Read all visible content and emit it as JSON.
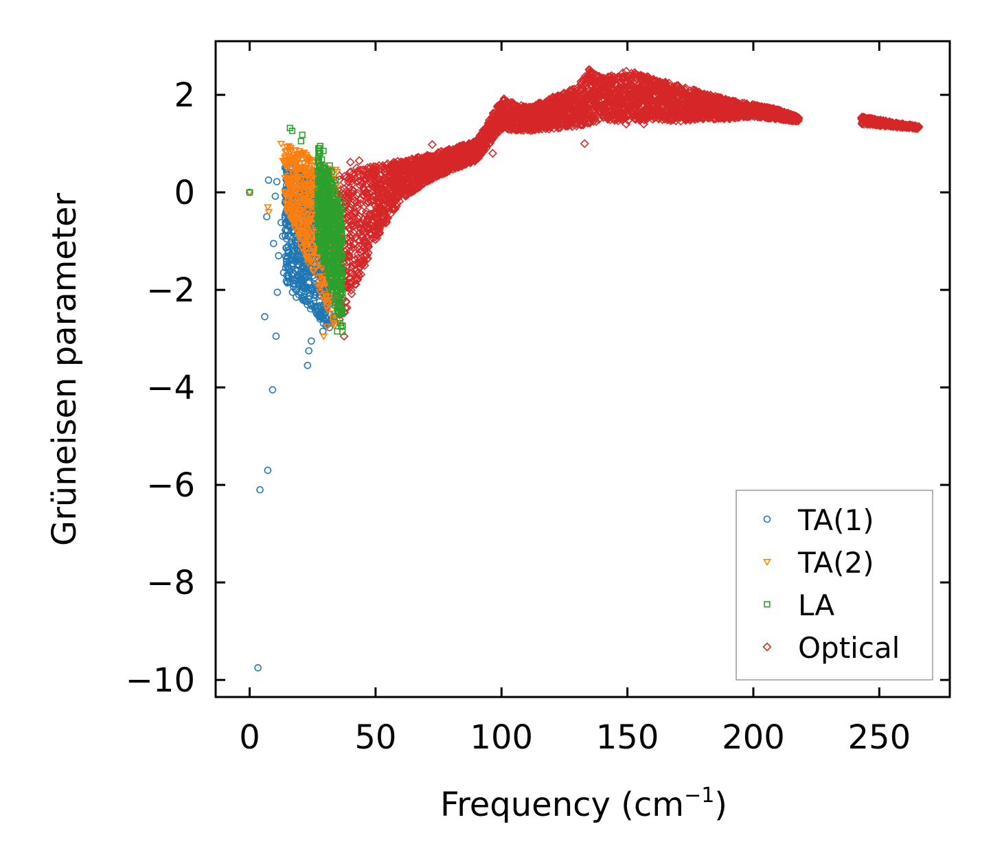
{
  "chart_data": {
    "type": "scatter",
    "title": "",
    "xlabel": "Frequency (cm",
    "xlabel_sup": "−1",
    "xlabel_close": ")",
    "ylabel": "Grüneisen parameter",
    "xlim": [
      -13.5,
      278
    ],
    "ylim": [
      -10.35,
      3.1
    ],
    "xticks": [
      0,
      50,
      100,
      150,
      200,
      250
    ],
    "xtick_labels": [
      "0",
      "50",
      "100",
      "150",
      "200",
      "250"
    ],
    "yticks": [
      -10,
      -8,
      -6,
      -4,
      -2,
      0,
      2
    ],
    "ytick_labels": [
      "−10",
      "−8",
      "−6",
      "−4",
      "−2",
      "0",
      "2"
    ],
    "legend_position": "lower-right",
    "series": [
      {
        "name": "TA(1)",
        "marker": "circle",
        "color": "#1f77b4",
        "points": [
          [
            0,
            0
          ],
          [
            3.3,
            -9.75
          ],
          [
            4.1,
            -6.1
          ],
          [
            7.2,
            -5.7
          ],
          [
            9.1,
            -4.05
          ],
          [
            10.5,
            -2.95
          ],
          [
            6,
            -2.55
          ],
          [
            11,
            -2.05
          ],
          [
            17,
            -2.05
          ],
          [
            18.5,
            -2.15
          ],
          [
            23,
            -3.55
          ],
          [
            23.5,
            -3.25
          ],
          [
            24.5,
            -3.05
          ],
          [
            6.8,
            -0.5
          ],
          [
            9.5,
            -1.05
          ],
          [
            11.5,
            -1.3
          ],
          [
            13.5,
            -1.65
          ],
          [
            7.5,
            0.25
          ],
          [
            10.8,
            0.22
          ],
          [
            10.2,
            -0.08
          ],
          [
            12.5,
            -0.62
          ],
          [
            15.3,
            -1.55
          ],
          [
            19.8,
            -1.42
          ],
          [
            21.3,
            -1.22
          ],
          [
            20.8,
            -0.02
          ],
          [
            21.5,
            0.45
          ],
          [
            24.1,
            0.32
          ],
          [
            27.4,
            -0.72
          ],
          [
            29.1,
            -2.85
          ],
          [
            30.2,
            -2.45
          ],
          [
            26.5,
            -2.05
          ],
          [
            22.2,
            -1.72
          ],
          [
            16.5,
            -1.02
          ],
          [
            18.3,
            -0.35
          ],
          [
            14.2,
            -0.18
          ],
          [
            23.7,
            -0.92
          ],
          [
            25.9,
            -1.45
          ],
          [
            28.6,
            -1.95
          ],
          [
            31.2,
            -0.6
          ],
          [
            13.1,
            -0.9
          ],
          [
            16.9,
            -1.35
          ],
          [
            19.1,
            -0.75
          ],
          [
            22.9,
            -2.3
          ],
          [
            28,
            -2.6
          ],
          [
            29.8,
            -1.2
          ]
        ],
        "band": {
          "x_min": 14,
          "x_max": 33,
          "y_bottom": [
            -1.8,
            -2.9
          ],
          "y_top": [
            0.6,
            0.3
          ]
        }
      },
      {
        "name": "TA(2)",
        "marker": "triangle-down",
        "color": "#ff7f0e",
        "points": [
          [
            0,
            0
          ],
          [
            7.2,
            -0.3
          ],
          [
            7.6,
            -0.4
          ],
          [
            12.5,
            1.0
          ],
          [
            13.2,
            0.65
          ],
          [
            14.8,
            0.5
          ],
          [
            16.1,
            0.92
          ],
          [
            17.9,
            0.72
          ],
          [
            19.7,
            0.85
          ],
          [
            21.6,
            0.82
          ],
          [
            24.3,
            0.55
          ],
          [
            26.3,
            0.45
          ],
          [
            29.4,
            -2.95
          ],
          [
            30.8,
            -2.75
          ],
          [
            31.1,
            -0.5
          ],
          [
            32.4,
            -1.6
          ],
          [
            28.5,
            -1.05
          ],
          [
            33.6,
            -0.1
          ],
          [
            27.2,
            0.12
          ],
          [
            25.1,
            -0.2
          ],
          [
            18.9,
            0.3
          ]
        ],
        "band": {
          "x_min": 14,
          "x_max": 35,
          "y_bottom": [
            -0.3,
            -2.95
          ],
          "y_top": [
            1.0,
            0.45
          ]
        }
      },
      {
        "name": "LA",
        "marker": "square",
        "color": "#2ca02c",
        "points": [
          [
            0,
            0
          ],
          [
            16,
            1.32
          ],
          [
            16.9,
            1.26
          ],
          [
            20.4,
            1.05
          ],
          [
            20.9,
            1.18
          ],
          [
            28,
            0.95
          ],
          [
            27.6,
            0.9
          ],
          [
            29.3,
            0.85
          ],
          [
            31.8,
            0.55
          ],
          [
            32.6,
            0.42
          ],
          [
            34.1,
            0.25
          ],
          [
            35.2,
            -0.55
          ],
          [
            36.2,
            -1.75
          ],
          [
            36.4,
            -1.95
          ],
          [
            34.8,
            -2.85
          ],
          [
            35.6,
            -2.3
          ],
          [
            35.9,
            -1.35
          ],
          [
            36.1,
            -1.6
          ],
          [
            33.7,
            -2.55
          ]
        ],
        "band": {
          "x_min": 27,
          "x_max": 37,
          "y_bottom": [
            -1.0,
            -2.9
          ],
          "y_top": [
            0.95,
            -0.3
          ]
        }
      },
      {
        "name": "Optical",
        "marker": "diamond",
        "color": "#d62728",
        "points": [
          [
            133,
            1.0
          ],
          [
            43.5,
            0.65
          ],
          [
            40,
            0.62
          ],
          [
            42.5,
            0.5
          ],
          [
            37.5,
            -2.95
          ],
          [
            149.5,
            1.4
          ],
          [
            142.2,
            1.5
          ],
          [
            156.5,
            1.4
          ],
          [
            160,
            1.5
          ],
          [
            176,
            1.62
          ],
          [
            211.5,
            1.55
          ],
          [
            216,
            1.48
          ],
          [
            101,
            1.92
          ],
          [
            72.5,
            0.98
          ],
          [
            91.2,
            1.1
          ],
          [
            96.5,
            0.8
          ],
          [
            245.5,
            1.5
          ],
          [
            264,
            1.35
          ]
        ],
        "band": [
          {
            "x_min": 35,
            "x_max": 100,
            "y_bottom": [
              -2.9,
              0.85
            ],
            "y_top": [
              0.4,
              1.15
            ]
          },
          {
            "x_min": 97,
            "x_max": 218,
            "y_bottom": [
              1.35,
              1.48
            ],
            "y_top": [
              1.85,
              1.55
            ]
          },
          {
            "x_min": 243,
            "x_max": 266,
            "y_bottom": [
              1.4,
              1.3
            ],
            "y_top": [
              1.55,
              1.35
            ]
          }
        ],
        "y_envelope": {
          "x": [
            35,
            40,
            50,
            60,
            70,
            80,
            90,
            100,
            110,
            120,
            130,
            135,
            140,
            150,
            160,
            170,
            180,
            190,
            200,
            210,
            218
          ],
          "y_top": [
            0.4,
            0.45,
            0.55,
            0.65,
            0.75,
            0.9,
            1.05,
            1.92,
            1.75,
            1.95,
            2.15,
            2.55,
            2.35,
            2.5,
            2.35,
            2.2,
            2.05,
            1.9,
            1.8,
            1.7,
            1.55
          ],
          "y_bottom": [
            -2.9,
            -2.2,
            -1.0,
            -0.15,
            0.2,
            0.45,
            0.65,
            1.3,
            1.25,
            1.3,
            1.35,
            1.4,
            1.5,
            1.45,
            1.5,
            1.45,
            1.5,
            1.5,
            1.55,
            1.5,
            1.45
          ]
        }
      }
    ]
  }
}
